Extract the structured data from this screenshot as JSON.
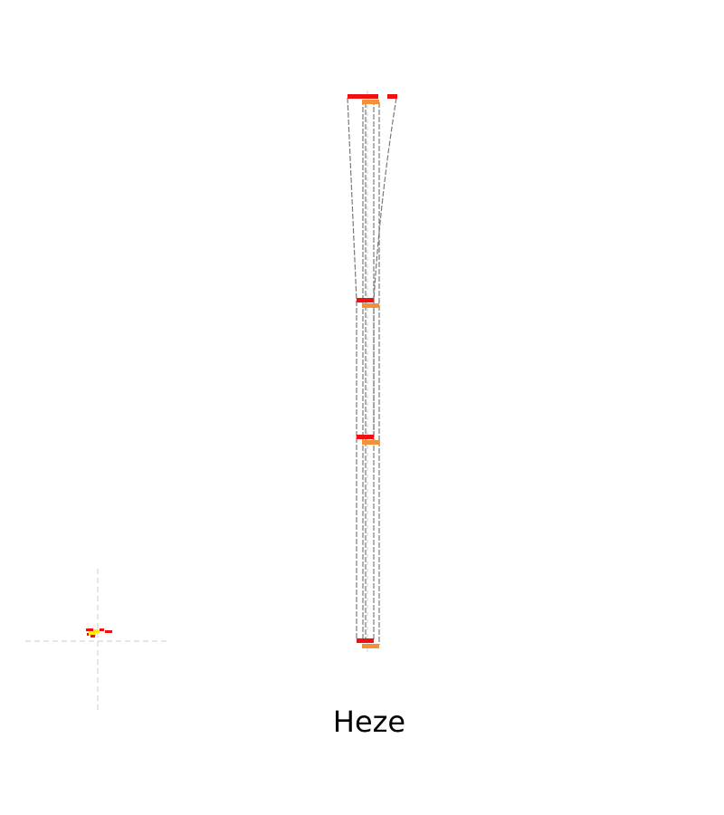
{
  "title": "Heze",
  "colors": {
    "red": "#ee1111",
    "orange": "#f0923a",
    "yellow": "#ffee00",
    "line": "#7a7a7a",
    "crosshair": "#cccccc"
  }
}
